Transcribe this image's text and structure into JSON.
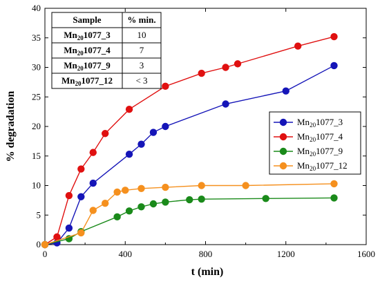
{
  "chart_data": {
    "type": "line",
    "xlabel": "t (min)",
    "ylabel": "% degradation",
    "xlim": [
      0,
      1600
    ],
    "ylim": [
      0,
      40
    ],
    "x_ticks": [
      0,
      400,
      800,
      1200,
      1600
    ],
    "y_ticks": [
      0,
      5,
      10,
      15,
      20,
      25,
      30,
      35,
      40
    ],
    "legend_position": "right",
    "series": [
      {
        "name": "Mn20_1077_3",
        "name_base": "Mn",
        "name_sub": "20",
        "name_rest": "1077_3",
        "color": "#1515b8",
        "x": [
          0,
          60,
          120,
          180,
          240,
          420,
          480,
          540,
          600,
          900,
          1200,
          1440
        ],
        "y": [
          0,
          0.3,
          2.8,
          8.1,
          10.4,
          15.3,
          17.0,
          19.0,
          20.0,
          23.8,
          26.0,
          30.3
        ]
      },
      {
        "name": "Mn20_1077_4",
        "name_base": "Mn",
        "name_sub": "20",
        "name_rest": "1077_4",
        "color": "#e01010",
        "x": [
          0,
          60,
          120,
          180,
          240,
          300,
          420,
          600,
          780,
          900,
          960,
          1260,
          1440
        ],
        "y": [
          0,
          1.3,
          8.3,
          12.8,
          15.6,
          18.8,
          22.9,
          26.8,
          29.0,
          30.0,
          30.6,
          33.6,
          35.2
        ]
      },
      {
        "name": "Mn20_1077_9",
        "name_base": "Mn",
        "name_sub": "20",
        "name_rest": "1077_9",
        "color": "#1a8a1a",
        "x": [
          0,
          120,
          180,
          360,
          420,
          480,
          540,
          600,
          720,
          780,
          1100,
          1440
        ],
        "y": [
          0,
          1.0,
          2.2,
          4.7,
          5.7,
          6.4,
          6.9,
          7.2,
          7.6,
          7.7,
          7.8,
          7.9
        ]
      },
      {
        "name": "Mn20_1077_12",
        "name_base": "Mn",
        "name_sub": "20",
        "name_rest": "1077_12",
        "color": "#f5901e",
        "x": [
          0,
          180,
          240,
          300,
          360,
          400,
          480,
          600,
          780,
          1000,
          1440
        ],
        "y": [
          0,
          2.0,
          5.8,
          7.0,
          8.9,
          9.2,
          9.5,
          9.7,
          10.0,
          10.0,
          10.3
        ]
      }
    ],
    "inset_table": {
      "headers": [
        "Sample",
        "% min."
      ],
      "rows": [
        {
          "base": "Mn",
          "sub": "20",
          "rest": "1077_3",
          "value": "10"
        },
        {
          "base": "Mn",
          "sub": "20",
          "rest": "1077_4",
          "value": "7"
        },
        {
          "base": "Mn",
          "sub": "20",
          "rest": "1077_9",
          "value": "3"
        },
        {
          "base": "Mn",
          "sub": "20",
          "rest": "1077_12",
          "value": "< 3"
        }
      ]
    }
  }
}
